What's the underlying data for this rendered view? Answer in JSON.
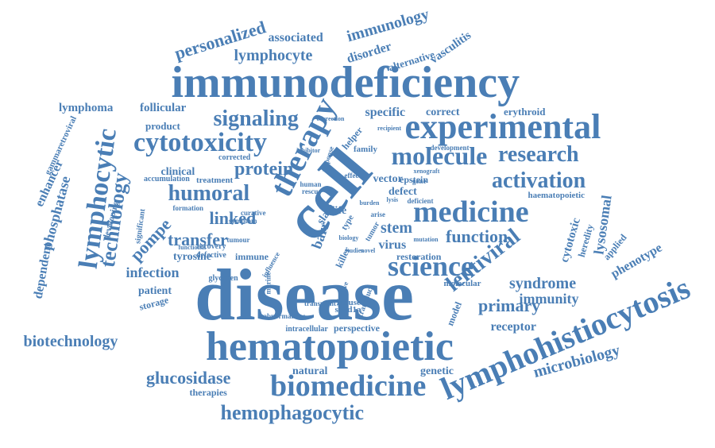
{
  "colors": {
    "word": "#4a7eb5",
    "background": "#ffffff"
  },
  "words": [
    "disease",
    "immunodeficiency",
    "hematopoietic",
    "lymphohistiocytosis",
    "cell",
    "therapy",
    "experimental",
    "science",
    "medicine",
    "biomedicine",
    "molecule",
    "cytotoxicity",
    "hemophagocytic",
    "lymphocytic",
    "research",
    "activation",
    "humoral",
    "lentiviral",
    "signaling",
    "protein",
    "technology",
    "phosphatase",
    "biotechnology",
    "glucosidase",
    "function",
    "linked",
    "transfer",
    "primary",
    "syndrome",
    "immunity",
    "microbiology",
    "personalized",
    "associated",
    "lymphocyte",
    "immunology",
    "disorder",
    "specific",
    "correct",
    "erythroid",
    "lymphoma",
    "follicular",
    "product",
    "clinical",
    "treatment",
    "pompe",
    "tyrosine",
    "infection",
    "patient",
    "storage",
    "dependent",
    "enhancer",
    "gammaretroviral",
    "developing",
    "significant",
    "stem",
    "virus",
    "restoration",
    "vector",
    "epstein",
    "defect",
    "helper",
    "family",
    "lysosomal",
    "cytotoxic",
    "heredity",
    "applied",
    "phenotype",
    "receptor",
    "model",
    "genetic",
    "natural",
    "therapies",
    "perspective",
    "intracellular",
    "abnormalities",
    "immune",
    "defective",
    "glycogen",
    "mouse",
    "sh2d1a",
    "killer",
    "barr",
    "life",
    "type",
    "alternative",
    "vasculitis",
    "haematopoietic",
    "molecular",
    "development",
    "deficient",
    "accumulation",
    "corrected",
    "curative",
    "symptom",
    "recovery",
    "tumour",
    "functional",
    "formation",
    "human",
    "rescue",
    "mutation",
    "arise",
    "recipient",
    "xenograft",
    "correction",
    "inhibitor",
    "transplant",
    "adoptive",
    "murine",
    "influence",
    "effector",
    "burden",
    "transduce",
    "response",
    "slam",
    "tumor",
    "biology",
    "studies",
    "novel",
    "gene",
    "lysis"
  ]
}
